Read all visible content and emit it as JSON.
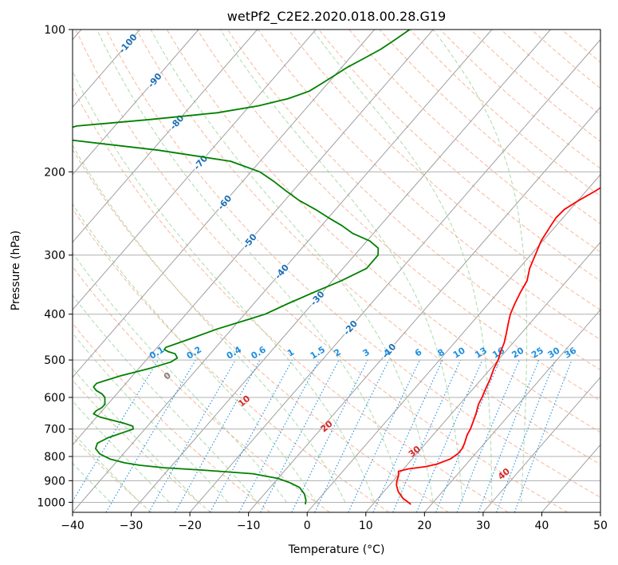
{
  "chart_data": {
    "type": "line",
    "title": "wetPf2_C2E2.2020.018.00.28.G19",
    "xlabel": "Temperature (°C)",
    "ylabel": "Pressure (hPa)",
    "xlim": [
      -40,
      50
    ],
    "ylim": [
      1050,
      100
    ],
    "y_scale": "log",
    "grid": true,
    "x_ticks": [
      "−40",
      "−30",
      "−20",
      "−10",
      "0",
      "10",
      "20",
      "30",
      "40",
      "50"
    ],
    "x_tick_values": [
      -40,
      -30,
      -20,
      -10,
      0,
      10,
      20,
      30,
      40,
      50
    ],
    "y_ticks": [
      "100",
      "200",
      "300",
      "400",
      "500",
      "600",
      "700",
      "800",
      "900",
      "1000"
    ],
    "y_tick_values": [
      100,
      200,
      300,
      400,
      500,
      600,
      700,
      800,
      900,
      1000
    ],
    "skew_per_decade": 70,
    "colors": {
      "temperature": "#ff0000",
      "dewpoint": "#008000",
      "isotherm": "#a0a0a0",
      "dry_adiabat": "#f4a582",
      "moist_adiabat": "#8fcf8f",
      "mixing_ratio": "#1f8fe0",
      "temp_label": "#1f6fb4",
      "theta_label": "#d62728"
    },
    "series": [
      {
        "key": "temperature",
        "p": [
          1010,
          980,
          950,
          920,
          900,
          880,
          860,
          850,
          840,
          830,
          810,
          790,
          770,
          750,
          720,
          700,
          680,
          650,
          620,
          600,
          570,
          550,
          520,
          500,
          480,
          460,
          440,
          420,
          400,
          380,
          360,
          340,
          320,
          300,
          280,
          260,
          250,
          240,
          230,
          220,
          200,
          180,
          160,
          150,
          140,
          130,
          120,
          110,
          105,
          100
        ],
        "t": [
          16.5,
          14.2,
          12.5,
          11.2,
          10.6,
          10.2,
          9.5,
          10.8,
          13.5,
          15.0,
          16.5,
          17.0,
          17.0,
          16.6,
          15.8,
          15.5,
          15.0,
          14.2,
          13.2,
          12.8,
          12.0,
          11.5,
          10.5,
          10.0,
          9.2,
          8.5,
          7.5,
          6.4,
          5.3,
          4.5,
          3.8,
          3.2,
          1.8,
          0.8,
          -0.3,
          -0.9,
          -1.2,
          -1.0,
          0.1,
          1.5,
          4.0,
          6.8,
          9.5,
          11.0,
          12.5,
          14.0,
          15.7,
          16.7,
          17.2,
          18.0
        ]
      },
      {
        "key": "dewpoint",
        "p": [
          1010,
          990,
          960,
          930,
          910,
          890,
          870,
          855,
          845,
          835,
          825,
          810,
          790,
          770,
          750,
          730,
          710,
          700,
          690,
          680,
          670,
          660,
          650,
          640,
          630,
          620,
          610,
          600,
          590,
          580,
          570,
          560,
          540,
          520,
          505,
          495,
          485,
          480,
          475,
          470,
          460,
          450,
          430,
          410,
          400,
          380,
          360,
          340,
          320,
          300,
          290,
          280,
          270,
          260,
          250,
          240,
          230,
          220,
          210,
          200,
          190,
          180,
          170,
          165,
          160,
          155,
          150,
          145,
          140,
          135,
          130,
          125,
          120,
          115,
          110,
          105,
          100
        ],
        "t": [
          -1.5,
          -2.0,
          -3.2,
          -5.0,
          -7.2,
          -10.0,
          -15.0,
          -24.0,
          -31.0,
          -35.5,
          -38.5,
          -41.5,
          -44.0,
          -45.5,
          -46.0,
          -45.0,
          -43.0,
          -42.0,
          -42.5,
          -44.5,
          -47.0,
          -49.5,
          -51.0,
          -51.0,
          -50.5,
          -50.5,
          -51.0,
          -51.5,
          -52.5,
          -54.0,
          -55.0,
          -55.0,
          -52.0,
          -48.0,
          -45.5,
          -45.0,
          -46.0,
          -47.5,
          -48.5,
          -48.5,
          -47.0,
          -45.5,
          -42.5,
          -38.5,
          -36.5,
          -34.2,
          -31.5,
          -28.5,
          -26.0,
          -26.0,
          -27.0,
          -29.5,
          -33.5,
          -36.5,
          -40.0,
          -43.5,
          -47.5,
          -51.0,
          -54.5,
          -58.5,
          -65.0,
          -79.0,
          -98.0,
          -99.0,
          -96.5,
          -85.0,
          -74.5,
          -68.5,
          -64.5,
          -62.0,
          -61.0,
          -60.0,
          -59.0,
          -57.5,
          -56.0,
          -55.0,
          -54.0
        ]
      }
    ],
    "isotherm_labels": [
      "-100",
      "-90",
      "-80",
      "-70",
      "-60",
      "-50",
      "-40",
      "-30",
      "-20",
      "-10"
    ],
    "isotherm_values": [
      -100,
      -90,
      -80,
      -70,
      -60,
      -50,
      -40,
      -30,
      -20,
      -10
    ],
    "mixing_ratio_labels": [
      "0.1",
      "0.2",
      "0.4",
      "0.6",
      "1",
      "1.5",
      "2",
      "3",
      "4",
      "6",
      "8",
      "10",
      "13",
      "16",
      "20",
      "25",
      "30",
      "36"
    ],
    "mixing_ratio_values": [
      0.1,
      0.2,
      0.4,
      0.6,
      1,
      1.5,
      2,
      3,
      4,
      6,
      8,
      10,
      13,
      16,
      20,
      25,
      30,
      36
    ],
    "theta_labels": [
      "0",
      "10",
      "20",
      "30",
      "40"
    ]
  }
}
